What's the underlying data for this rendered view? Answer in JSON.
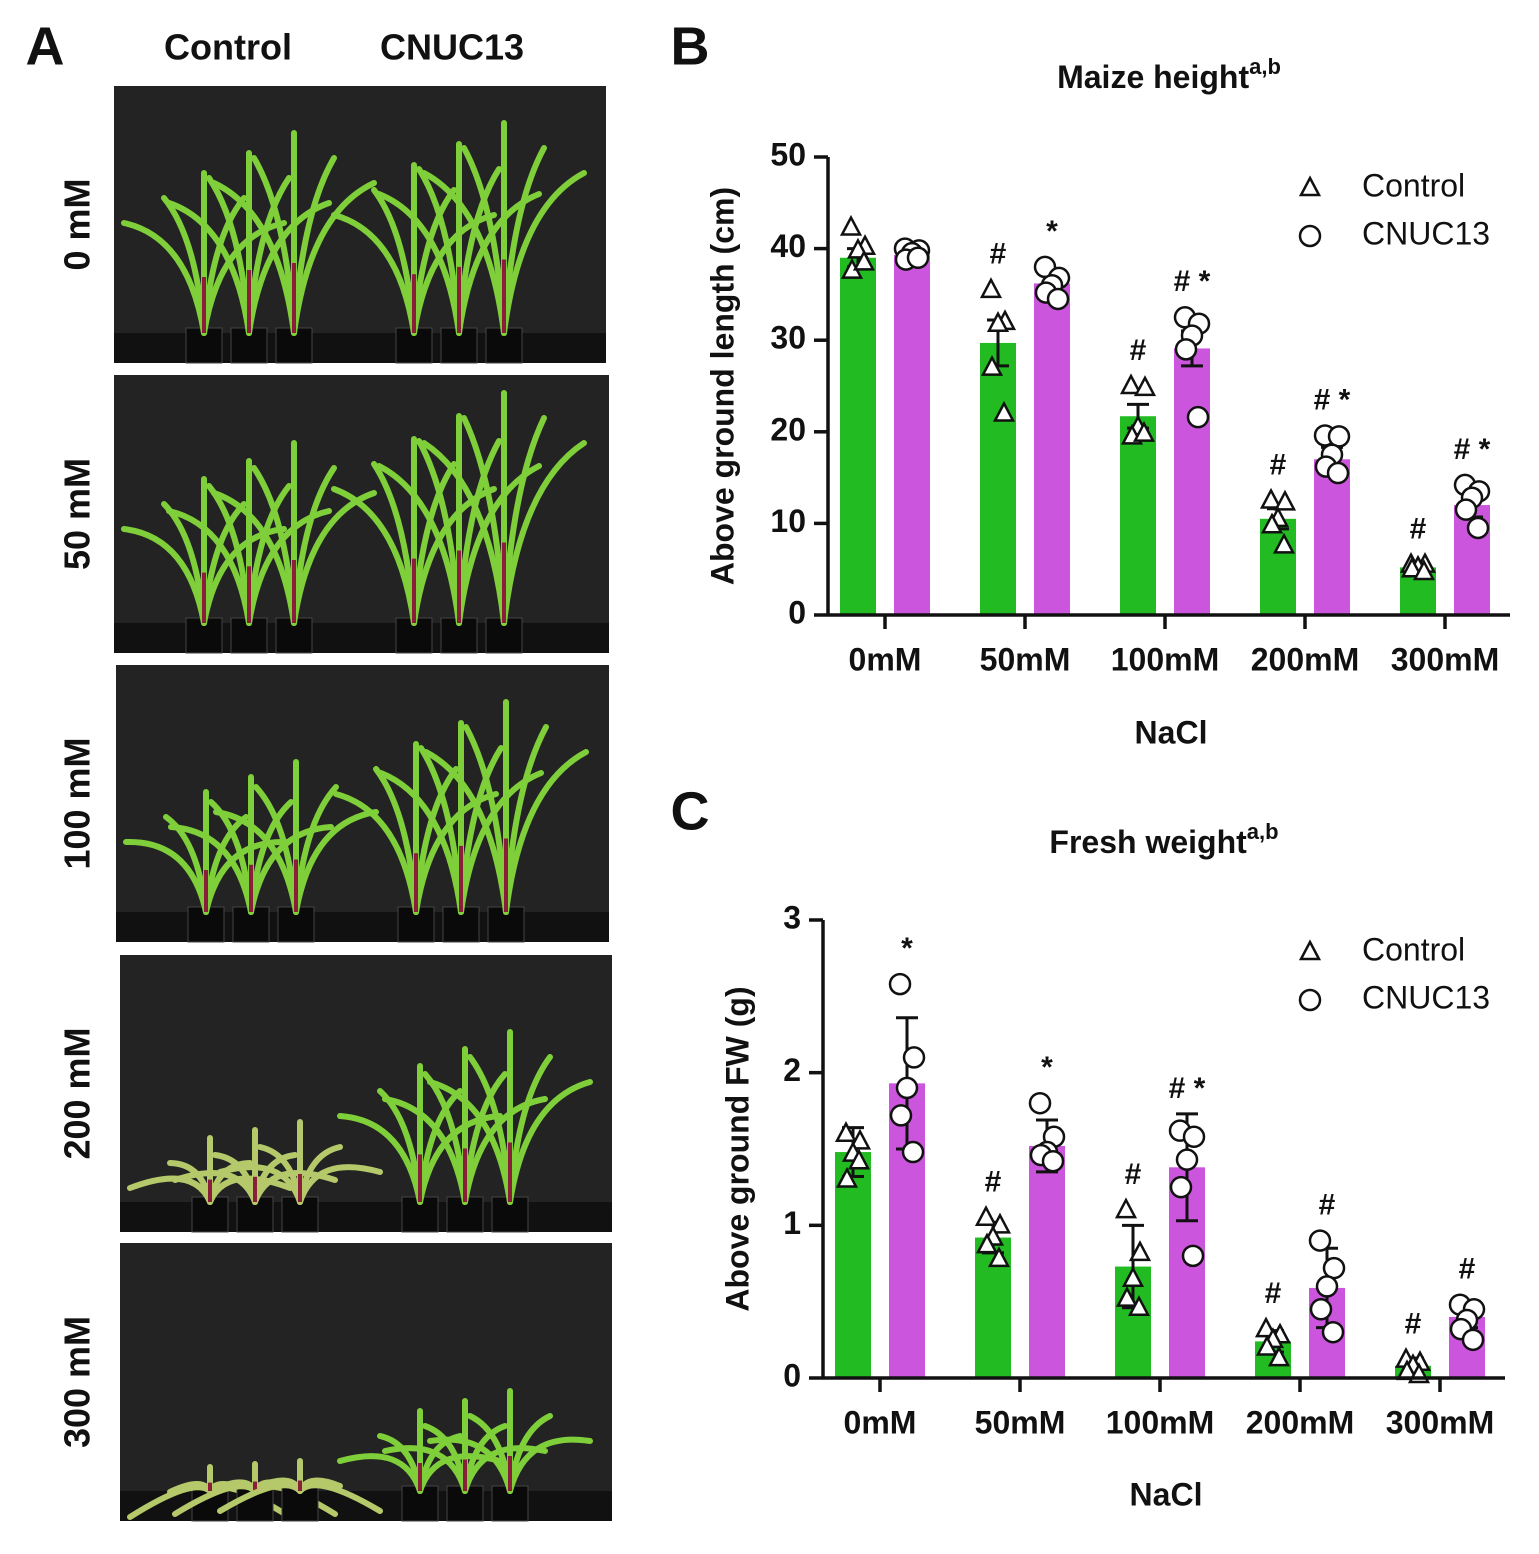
{
  "panel_a": {
    "label": "A",
    "columns": [
      "Control",
      "CNUC13"
    ],
    "rows": [
      "0 mM",
      "50 mM",
      "100 mM",
      "200 mM",
      "300 mM"
    ]
  },
  "chart_data": [
    {
      "type": "bar",
      "panel_label": "B",
      "title": "Maize height",
      "title_superscript": "a,b",
      "y_label": "Above ground length (cm)",
      "x_label": "NaCl",
      "categories": [
        "0mM",
        "50mM",
        "100mM",
        "200mM",
        "300mM"
      ],
      "ylim": [
        0,
        50
      ],
      "yticks": [
        0,
        10,
        20,
        30,
        40,
        50
      ],
      "legend": "upper right",
      "series": [
        {
          "name": "Control",
          "color": "#22bb22",
          "marker": "triangle",
          "values": [
            39,
            29.7,
            21.7,
            10.5,
            5.2
          ],
          "errors": [
            1,
            2.5,
            1.3,
            1.1,
            0.4
          ],
          "points": [
            [
              42.3,
              40.2,
              39.8,
              37.6,
              38.5
            ],
            [
              35.5,
              32,
              31.8,
              27,
              22
            ],
            [
              25,
              24.8,
              20.5,
              19.5,
              19.8
            ],
            [
              12.5,
              12.3,
              10.5,
              9.8,
              7.6
            ],
            [
              5.5,
              5.5,
              5.2,
              5,
              4.7
            ]
          ],
          "annotations": [
            null,
            "#",
            "#",
            "#",
            "#"
          ]
        },
        {
          "name": "CNUC13",
          "color": "#cc55dd",
          "marker": "circle",
          "values": [
            39.3,
            36.2,
            29.1,
            17,
            12
          ],
          "errors": [
            0.4,
            0.8,
            1.9,
            1.3,
            1.3
          ],
          "points": [
            [
              40,
              39.8,
              39.5,
              38.8,
              39
            ],
            [
              38,
              36.8,
              36,
              35.2,
              34.5
            ],
            [
              32.5,
              31.8,
              30.5,
              29,
              21.6
            ],
            [
              19.6,
              19.5,
              17.5,
              16.2,
              15.5
            ],
            [
              14.2,
              13.5,
              12.8,
              11.5,
              9.5
            ]
          ],
          "annotations": [
            null,
            "*",
            "# *",
            "# *",
            "# *"
          ]
        }
      ]
    },
    {
      "type": "bar",
      "panel_label": "C",
      "title": "Fresh weight",
      "title_superscript": "a,b",
      "y_label": "Above ground FW (g)",
      "x_label": "NaCl",
      "categories": [
        "0mM",
        "50mM",
        "100mM",
        "200mM",
        "300mM"
      ],
      "ylim": [
        0,
        3
      ],
      "yticks": [
        0,
        1,
        2,
        3
      ],
      "legend": "upper right",
      "series": [
        {
          "name": "Control",
          "color": "#22bb22",
          "marker": "triangle",
          "values": [
            1.48,
            0.92,
            0.73,
            0.24,
            0.08
          ],
          "errors": [
            0.16,
            0.1,
            0.27,
            0.07,
            0.05
          ],
          "points": [
            [
              1.6,
              1.55,
              1.47,
              1.3,
              1.42
            ],
            [
              1.05,
              1.0,
              0.92,
              0.87,
              0.78
            ],
            [
              1.1,
              0.82,
              0.65,
              0.52,
              0.46
            ],
            [
              0.32,
              0.28,
              0.25,
              0.2,
              0.13
            ],
            [
              0.12,
              0.1,
              0.08,
              0.04,
              0.02
            ]
          ],
          "annotations": [
            null,
            "#",
            "#",
            "#",
            "#"
          ]
        },
        {
          "name": "CNUC13",
          "color": "#cc55dd",
          "marker": "circle",
          "values": [
            1.93,
            1.52,
            1.38,
            0.59,
            0.4
          ],
          "errors": [
            0.43,
            0.17,
            0.35,
            0.26,
            0.07
          ],
          "points": [
            [
              2.58,
              2.1,
              1.9,
              1.72,
              1.48
            ],
            [
              1.8,
              1.58,
              1.48,
              1.46,
              1.42
            ],
            [
              1.62,
              1.58,
              1.43,
              1.25,
              0.8
            ],
            [
              0.9,
              0.72,
              0.6,
              0.45,
              0.3
            ],
            [
              0.48,
              0.45,
              0.38,
              0.32,
              0.25
            ]
          ],
          "annotations": [
            "*",
            "*",
            "# *",
            "#",
            "#"
          ]
        }
      ]
    }
  ]
}
